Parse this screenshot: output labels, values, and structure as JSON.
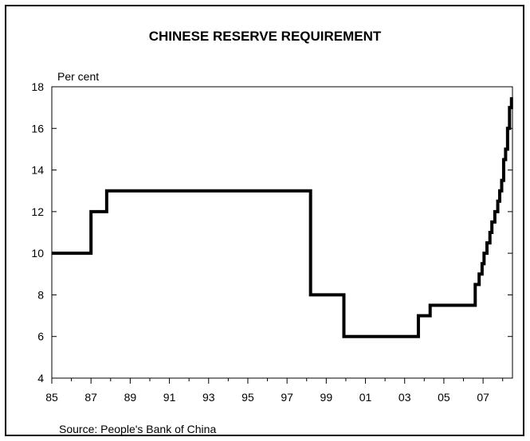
{
  "chart_data": {
    "type": "line",
    "title": "CHINESE RESERVE REQUIREMENT",
    "unit_label": "Per cent",
    "source": "Source: People's Bank of China",
    "xlabel": "",
    "ylabel": "",
    "xlim": [
      1985,
      2008.5
    ],
    "ylim": [
      4,
      18
    ],
    "x_ticks": [
      "85",
      "87",
      "89",
      "91",
      "93",
      "95",
      "97",
      "99",
      "01",
      "03",
      "05",
      "07"
    ],
    "x_tick_values": [
      1985,
      1987,
      1989,
      1991,
      1993,
      1995,
      1997,
      1999,
      2001,
      2003,
      2005,
      2007
    ],
    "y_ticks": [
      4,
      6,
      8,
      10,
      12,
      14,
      16,
      18
    ],
    "grid": false,
    "line_color": "#000000",
    "series": [
      {
        "step": true,
        "x": [
          1985.0,
          1987.0,
          1987.8,
          1998.2,
          1999.9,
          2003.7,
          2004.3,
          2006.6,
          2006.8,
          2006.95,
          2007.05,
          2007.2,
          2007.35,
          2007.45,
          2007.6,
          2007.75,
          2007.85,
          2007.95,
          2008.05,
          2008.15,
          2008.25,
          2008.35,
          2008.45
        ],
        "y": [
          10.0,
          12.0,
          13.0,
          8.0,
          6.0,
          7.0,
          7.5,
          8.5,
          9.0,
          9.5,
          10.0,
          10.5,
          11.0,
          11.5,
          12.0,
          12.5,
          13.0,
          13.5,
          14.5,
          15.0,
          16.0,
          17.0,
          17.5
        ]
      }
    ]
  }
}
